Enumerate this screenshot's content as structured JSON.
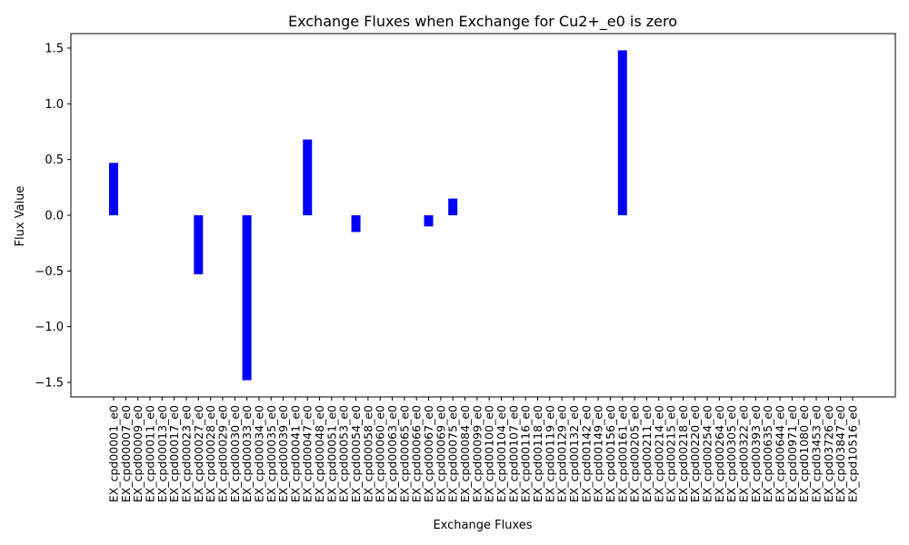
{
  "chart_data": {
    "type": "bar",
    "title": "Exchange Fluxes when Exchange for Cu2+_e0 is zero",
    "xlabel": "Exchange Fluxes",
    "ylabel": "Flux Value",
    "ylim": [
      -1.63,
      1.63
    ],
    "yticks": [
      -1.5,
      -1.0,
      -0.5,
      0.0,
      0.5,
      1.0,
      1.5
    ],
    "ytick_labels": [
      "−1.5",
      "−1.0",
      "−0.5",
      "0.0",
      "0.5",
      "1.0",
      "1.5"
    ],
    "bar_color": "#0000ff",
    "grid": false,
    "legend": "none",
    "categories": [
      "EX_cpd00001_e0",
      "EX_cpd00007_e0",
      "EX_cpd00009_e0",
      "EX_cpd00011_e0",
      "EX_cpd00013_e0",
      "EX_cpd00017_e0",
      "EX_cpd00023_e0",
      "EX_cpd00027_e0",
      "EX_cpd00028_e0",
      "EX_cpd00029_e0",
      "EX_cpd00030_e0",
      "EX_cpd00033_e0",
      "EX_cpd00034_e0",
      "EX_cpd00035_e0",
      "EX_cpd00039_e0",
      "EX_cpd00041_e0",
      "EX_cpd00047_e0",
      "EX_cpd00048_e0",
      "EX_cpd00051_e0",
      "EX_cpd00053_e0",
      "EX_cpd00054_e0",
      "EX_cpd00058_e0",
      "EX_cpd00060_e0",
      "EX_cpd00063_e0",
      "EX_cpd00065_e0",
      "EX_cpd00066_e0",
      "EX_cpd00067_e0",
      "EX_cpd00069_e0",
      "EX_cpd00075_e0",
      "EX_cpd00084_e0",
      "EX_cpd00099_e0",
      "EX_cpd00100_e0",
      "EX_cpd00104_e0",
      "EX_cpd00107_e0",
      "EX_cpd00116_e0",
      "EX_cpd00118_e0",
      "EX_cpd00119_e0",
      "EX_cpd00129_e0",
      "EX_cpd00132_e0",
      "EX_cpd00142_e0",
      "EX_cpd00149_e0",
      "EX_cpd00156_e0",
      "EX_cpd00161_e0",
      "EX_cpd00205_e0",
      "EX_cpd00211_e0",
      "EX_cpd00214_e0",
      "EX_cpd00215_e0",
      "EX_cpd00218_e0",
      "EX_cpd00220_e0",
      "EX_cpd00254_e0",
      "EX_cpd00264_e0",
      "EX_cpd00305_e0",
      "EX_cpd00322_e0",
      "EX_cpd00393_e0",
      "EX_cpd00635_e0",
      "EX_cpd00644_e0",
      "EX_cpd00971_e0",
      "EX_cpd01080_e0",
      "EX_cpd03453_e0",
      "EX_cpd03726_e0",
      "EX_cpd03847_e0",
      "EX_cpd10516_e0"
    ],
    "values": [
      0.47,
      0,
      0,
      0,
      0,
      0,
      0,
      -0.53,
      0,
      0,
      0,
      -1.48,
      0,
      0,
      0,
      0,
      0.68,
      0,
      0,
      0,
      -0.15,
      0,
      0,
      0,
      0,
      0,
      -0.1,
      0,
      0.15,
      0,
      0,
      0,
      0,
      0,
      0,
      0,
      0,
      0,
      0,
      0,
      0,
      0,
      1.48,
      0,
      0,
      0,
      0,
      0,
      0,
      0,
      0,
      0,
      0,
      0,
      0,
      0,
      0,
      0,
      0,
      0,
      0,
      0
    ]
  }
}
